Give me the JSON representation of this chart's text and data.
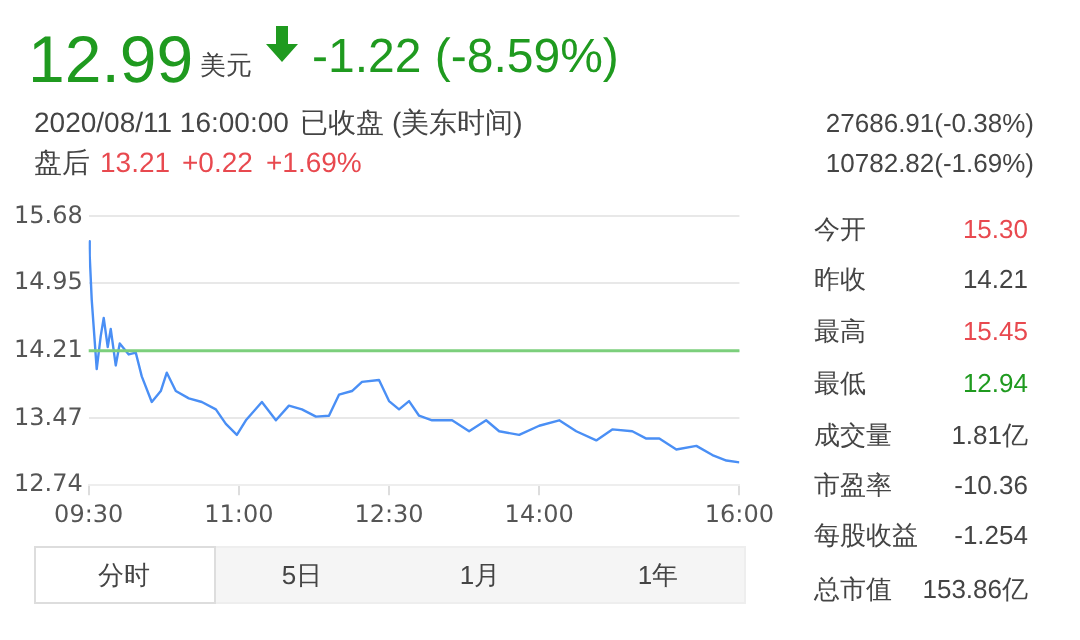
{
  "chart_data": {
    "type": "line",
    "xlim": [
      9.5,
      16
    ],
    "ylim": [
      12.74,
      15.68
    ],
    "xticks": [
      {
        "value": 9.5,
        "label": "09:30"
      },
      {
        "value": 11,
        "label": "11:00"
      },
      {
        "value": 12.5,
        "label": "12:30"
      },
      {
        "value": 14,
        "label": "14:00"
      },
      {
        "value": 16,
        "label": "16:00"
      }
    ],
    "yticks": [
      12.74,
      13.47,
      14.21,
      14.95,
      15.68
    ],
    "grid": "y",
    "marker": "none",
    "ref_lines": [
      {
        "axis": "y",
        "value": 14.21,
        "color": "#7ccf7c"
      }
    ],
    "annotations": [
      "12.99",
      "美元",
      "-1.22 (-8.59%)",
      "2020/08/11 16:00:00",
      "已收盘",
      "(美东时间)",
      "盘后",
      "13.21",
      "+0.22",
      "+1.69%",
      "27686.91(-0.38%)",
      "10782.82(-1.69%)",
      "今开",
      "15.30",
      "昨收",
      "14.21",
      "最高",
      "15.45",
      "最低",
      "12.94",
      "成交量",
      "1.81亿",
      "市盈率",
      "-10.36",
      "每股收益",
      "-1.254",
      "总市值",
      "153.86亿",
      "分时",
      "5日",
      "1月",
      "1年"
    ],
    "series": [
      {
        "color": "#4a8ff5",
        "x": [
          9.5,
          9.51,
          9.53,
          9.58,
          9.62,
          9.65,
          9.69,
          9.72,
          9.77,
          9.81,
          9.9,
          9.97,
          10.03,
          10.13,
          10.22,
          10.28,
          10.37,
          10.5,
          10.63,
          10.77,
          10.87,
          10.98,
          11.07,
          11.23,
          11.37,
          11.5,
          11.63,
          11.77,
          11.9,
          12.0,
          12.13,
          12.23,
          12.4,
          12.5,
          12.6,
          12.7,
          12.8,
          12.93,
          13.13,
          13.3,
          13.47,
          13.6,
          13.8,
          14.0,
          14.2,
          14.37,
          14.57,
          14.73,
          14.93,
          15.07,
          15.2,
          15.37,
          15.57,
          15.73,
          15.87,
          16
        ],
        "values": [
          15.41,
          15.25,
          14.77,
          14.01,
          14.37,
          14.57,
          14.25,
          14.45,
          14.05,
          14.29,
          14.17,
          14.19,
          13.93,
          13.65,
          13.77,
          13.97,
          13.77,
          13.69,
          13.65,
          13.57,
          13.41,
          13.29,
          13.45,
          13.65,
          13.45,
          13.61,
          13.57,
          13.49,
          13.5,
          13.73,
          13.77,
          13.87,
          13.89,
          13.66,
          13.57,
          13.66,
          13.5,
          13.45,
          13.45,
          13.33,
          13.45,
          13.33,
          13.29,
          13.39,
          13.45,
          13.33,
          13.23,
          13.35,
          13.33,
          13.25,
          13.25,
          13.13,
          13.17,
          13.07,
          13.01,
          12.99
        ]
      }
    ]
  }
}
